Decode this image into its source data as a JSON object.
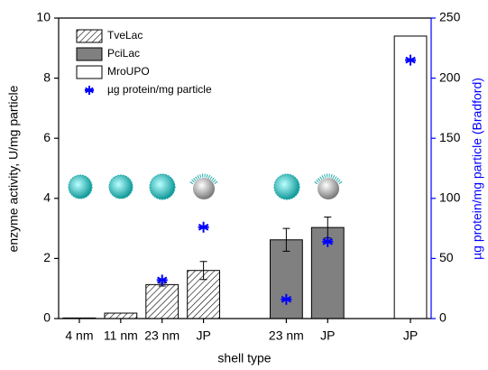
{
  "chart_data": {
    "type": "bar",
    "xlabel": "shell type",
    "ylabel": "enzyme activity, U/mg particle",
    "y2label": "µg protein/mg particle (Bradford)",
    "categories": [
      "4 nm",
      "11 nm",
      "23 nm",
      "JP",
      null,
      "23 nm",
      "JP",
      null,
      "JP"
    ],
    "ylim": [
      0,
      10
    ],
    "yticks": [
      0,
      2,
      4,
      6,
      8,
      10
    ],
    "y2lim": [
      0,
      250
    ],
    "y2ticks": [
      0,
      50,
      100,
      150,
      200,
      250
    ],
    "y2color": "#0000ff",
    "legend": "upper left",
    "series": [
      {
        "name": "TveLac",
        "color": "#ffffff",
        "hatch": true,
        "values": [
          0.02,
          0.18,
          1.13,
          1.6,
          null,
          null,
          null,
          null,
          null
        ],
        "errors": [
          null,
          null,
          0.05,
          0.3,
          null,
          null,
          null,
          null,
          null
        ]
      },
      {
        "name": "PciLac",
        "color": "#808080",
        "values": [
          null,
          null,
          null,
          null,
          null,
          2.62,
          3.03,
          null,
          null
        ],
        "errors": [
          null,
          null,
          null,
          null,
          null,
          0.38,
          0.35,
          null,
          null
        ]
      },
      {
        "name": "MroUPO",
        "color": "#ffffff",
        "values": [
          null,
          null,
          null,
          null,
          null,
          null,
          null,
          null,
          9.4
        ]
      },
      {
        "name": "µg protein/mg particle",
        "color": "#0000ff",
        "type": "scatter",
        "axis": "y2",
        "values": [
          null,
          null,
          32,
          76,
          null,
          16,
          64,
          null,
          215
        ]
      }
    ]
  }
}
